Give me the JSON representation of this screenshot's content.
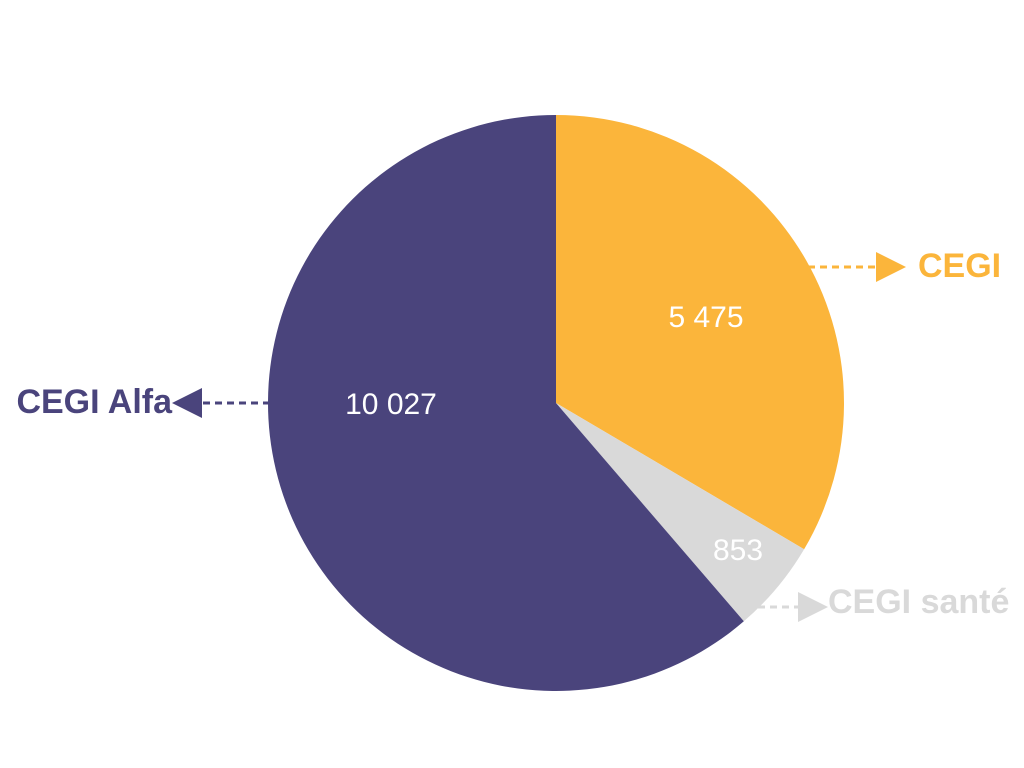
{
  "chart_data": {
    "type": "pie",
    "start_angle_deg": 0,
    "direction": "clockwise",
    "slices": [
      {
        "label": "CEGI",
        "value": 5475,
        "value_label": "5 475",
        "color": "#FBB53B"
      },
      {
        "label": "CEGI santé",
        "value": 853,
        "value_label": "853",
        "color": "#D9D9D9"
      },
      {
        "label": "CEGI Alfa",
        "value": 10027,
        "value_label": "10 027",
        "color": "#4A447C"
      }
    ]
  }
}
